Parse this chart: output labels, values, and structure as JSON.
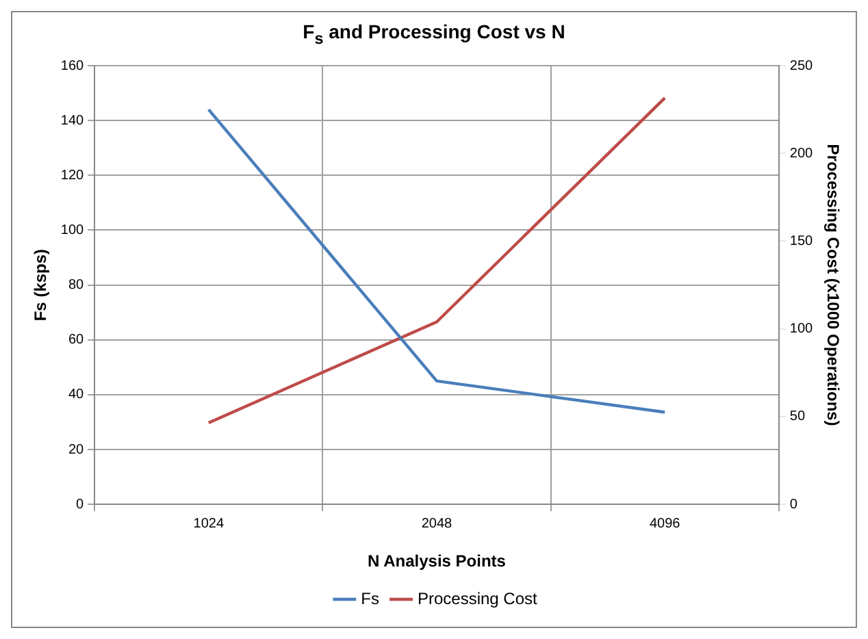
{
  "chart_data": {
    "type": "line",
    "title": "F$_{s}$ and Processing Cost vs N",
    "xlabel": "N Analysis Points",
    "ylabel": "Fs (ksps)",
    "y2label": "Processing Cost (x1000 Operations)",
    "categories": [
      "1024",
      "2048",
      "4096"
    ],
    "series": [
      {
        "name": "Fs",
        "color": "#4a7ebb",
        "values": [
          144,
          45,
          33.6
        ]
      },
      {
        "name": "Processing Cost",
        "color": "#be4b48",
        "values": [
          46.5,
          104,
          231.6
        ],
        "axis": "y2"
      }
    ],
    "ylim": [
      0,
      160
    ],
    "yticks": [
      0,
      20,
      40,
      60,
      80,
      100,
      120,
      140,
      160
    ],
    "y2lim": [
      0,
      250
    ],
    "y2ticks": [
      0,
      50,
      100,
      150,
      200,
      250
    ],
    "grid": true,
    "legend": "bottom",
    "marker": "none",
    "line_style": "solid"
  }
}
